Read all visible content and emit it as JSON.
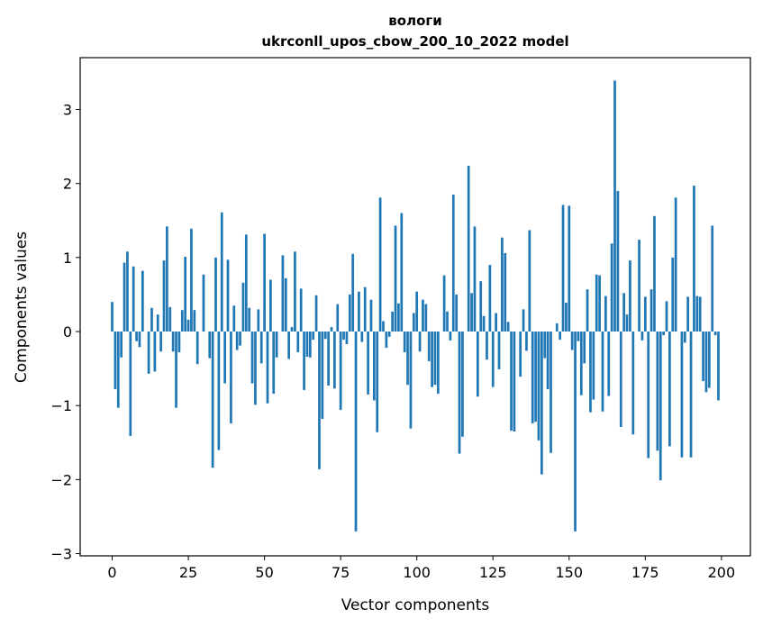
{
  "chart_data": {
    "type": "bar",
    "title": "вологи",
    "subtitle": "ukrconll_upos_cbow_200_10_2022 model",
    "xlabel": "Vector components",
    "ylabel": "Components values",
    "xlim": [
      -10.5,
      209.5
    ],
    "ylim": [
      -3.03,
      3.7
    ],
    "xticks": [
      0,
      25,
      50,
      75,
      100,
      125,
      150,
      175,
      200
    ],
    "xtick_labels": [
      "0",
      "25",
      "50",
      "75",
      "100",
      "125",
      "150",
      "175",
      "200"
    ],
    "yticks": [
      -3,
      -2,
      -1,
      0,
      1,
      2,
      3
    ],
    "ytick_labels": [
      "−3",
      "−2",
      "−1",
      "0",
      "1",
      "2",
      "3"
    ],
    "grid": false,
    "bar_color": "#1f77b4",
    "values": [
      0.4,
      -0.78,
      -1.03,
      -0.35,
      0.93,
      1.08,
      -1.41,
      0.88,
      -0.13,
      -0.21,
      0.82,
      0.0,
      -0.57,
      0.32,
      -0.54,
      0.23,
      -0.27,
      0.96,
      1.42,
      0.33,
      -0.27,
      -1.03,
      -0.28,
      0.29,
      1.01,
      0.16,
      1.39,
      0.29,
      -0.44,
      0.0,
      0.77,
      0.0,
      -0.36,
      -1.84,
      1.0,
      -1.6,
      1.61,
      -0.7,
      0.97,
      -1.24,
      0.35,
      -0.25,
      -0.19,
      0.66,
      1.31,
      0.32,
      -0.7,
      -0.99,
      0.3,
      -0.43,
      1.32,
      -0.97,
      0.7,
      -0.84,
      -0.35,
      0.0,
      1.03,
      0.72,
      -0.37,
      0.06,
      1.08,
      -0.28,
      0.58,
      -0.79,
      -0.34,
      -0.35,
      -0.11,
      0.49,
      -1.86,
      -1.18,
      -0.1,
      -0.73,
      0.06,
      -0.77,
      0.37,
      -1.06,
      -0.11,
      -0.17,
      0.5,
      1.05,
      -2.7,
      0.54,
      -0.14,
      0.6,
      -0.85,
      0.43,
      -0.93,
      -1.36,
      1.81,
      0.14,
      -0.22,
      -0.07,
      0.27,
      1.43,
      0.38,
      1.6,
      -0.28,
      -0.72,
      -1.31,
      0.25,
      0.54,
      -0.27,
      0.43,
      0.37,
      -0.4,
      -0.75,
      -0.72,
      -0.84,
      0.0,
      0.76,
      0.27,
      -0.12,
      1.85,
      0.5,
      -1.65,
      -1.42,
      0.0,
      2.24,
      0.52,
      1.42,
      -0.88,
      0.68,
      0.21,
      -0.38,
      0.9,
      -0.75,
      0.25,
      -0.51,
      1.27,
      1.06,
      0.13,
      -1.34,
      -1.35,
      0.0,
      -0.61,
      0.3,
      -0.26,
      1.37,
      -1.24,
      -1.22,
      -1.47,
      -1.93,
      -0.36,
      -0.78,
      -1.64,
      0.0,
      0.11,
      -0.11,
      1.71,
      0.39,
      1.7,
      -0.25,
      -2.7,
      -0.13,
      -0.86,
      -0.43,
      0.57,
      -1.09,
      -0.92,
      0.77,
      0.76,
      -1.08,
      0.48,
      -0.87,
      1.19,
      3.39,
      1.9,
      -1.29,
      0.52,
      0.23,
      0.96,
      -1.39,
      0.0,
      1.24,
      -0.12,
      0.47,
      -1.71,
      0.57,
      1.56,
      -1.61,
      -2.01,
      -0.05,
      0.41,
      -1.55,
      1.0,
      1.81,
      0.0,
      -1.7,
      -0.15,
      0.47,
      -1.7,
      1.97,
      0.48,
      0.47,
      -0.67,
      -0.82,
      -0.76,
      1.43,
      -0.05,
      -0.93
    ]
  }
}
